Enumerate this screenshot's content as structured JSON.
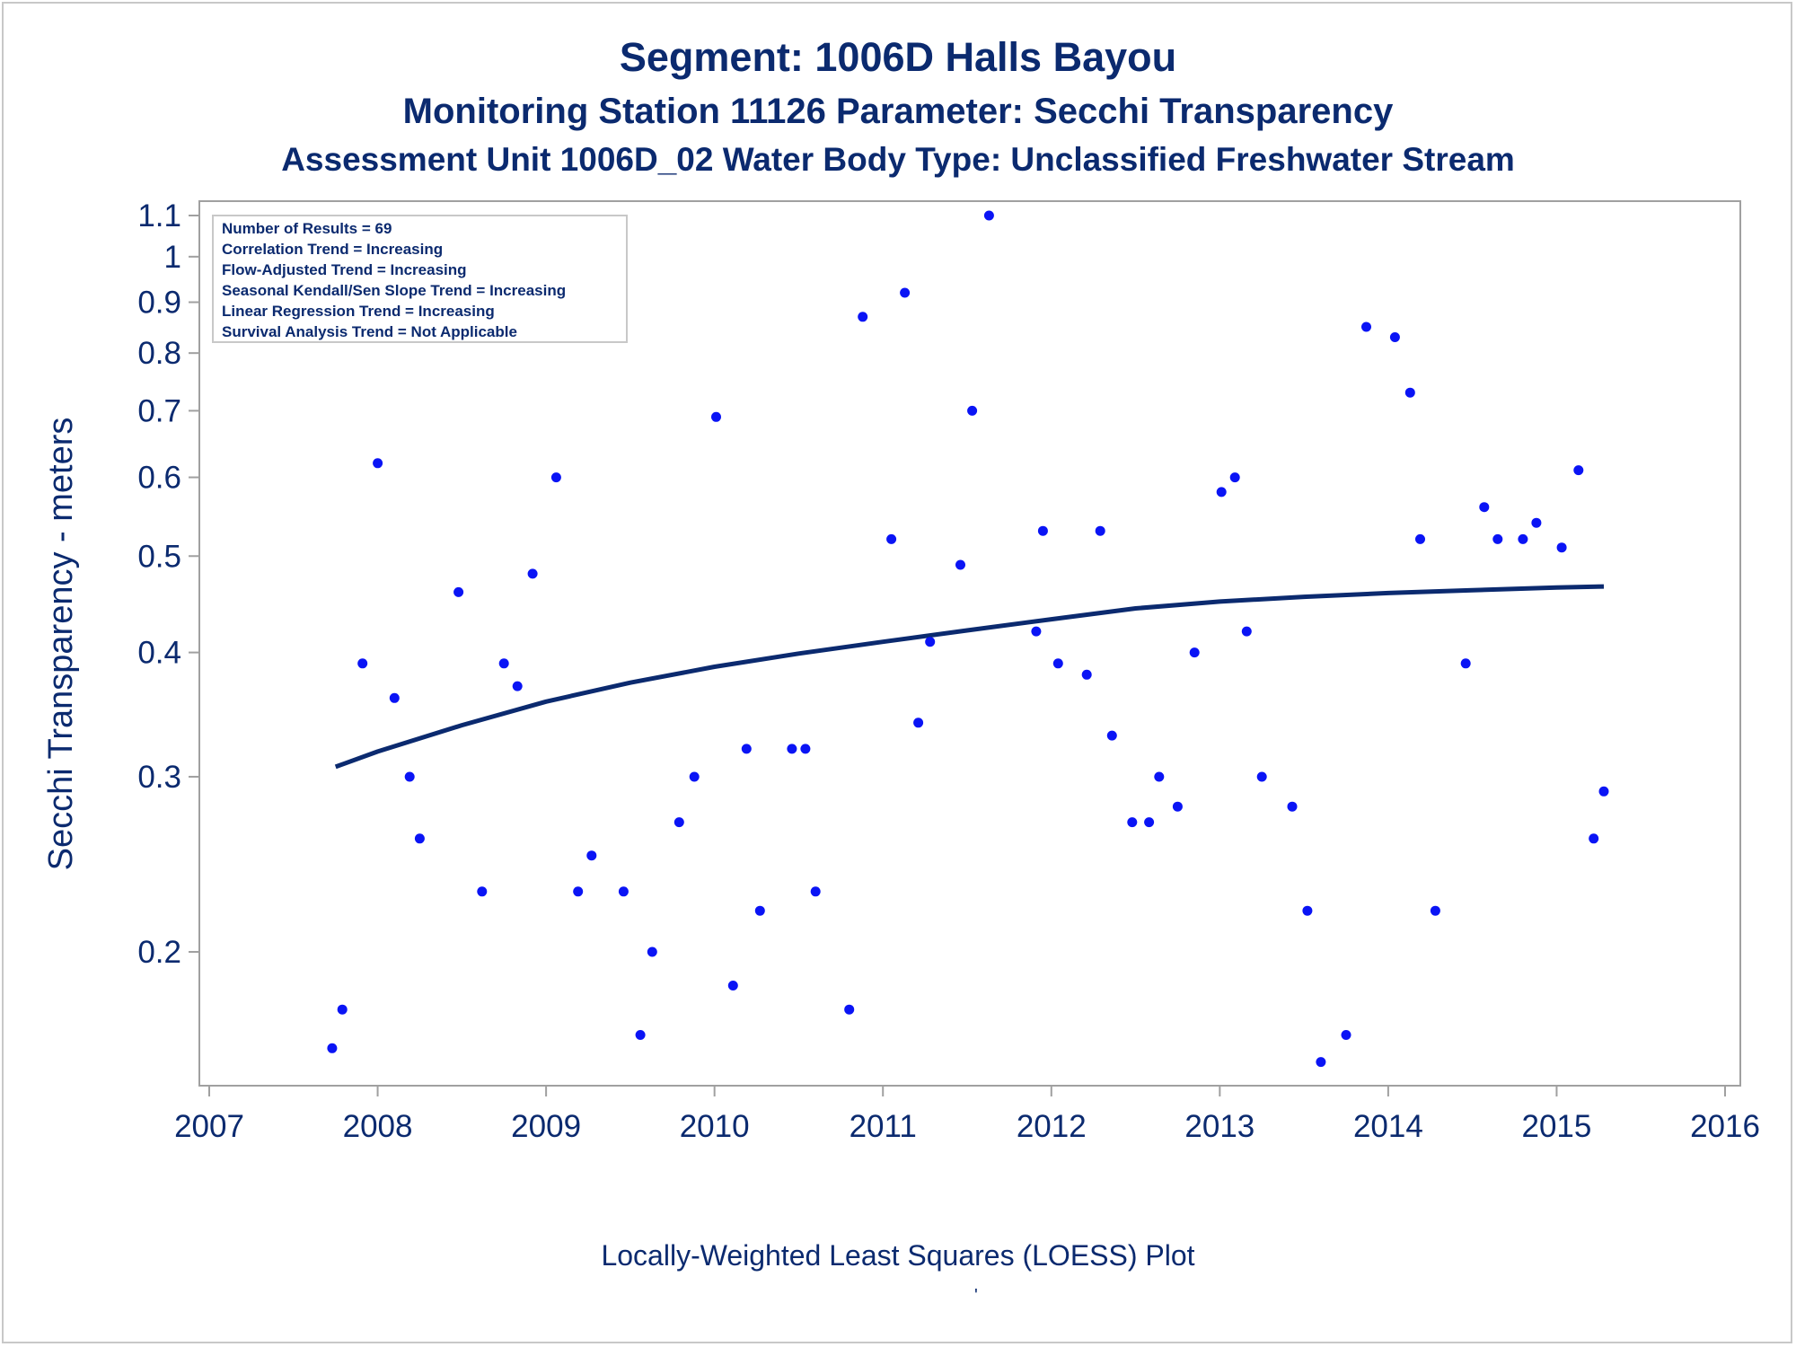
{
  "titles": {
    "line1": "Segment: 1006D  Halls Bayou",
    "line2": "Monitoring Station 11126 Parameter: Secchi Transparency",
    "line3": "Assessment Unit 1006D_02   Water Body Type: Unclassified Freshwater Stream"
  },
  "stats_box": [
    "Number of Results = 69",
    "Correlation Trend = Increasing",
    "Flow-Adjusted Trend = Increasing",
    "Seasonal Kendall/Sen Slope Trend = Increasing",
    "Linear Regression Trend = Increasing",
    "Survival Analysis Trend = Not Applicable"
  ],
  "footnote": "Locally-Weighted Least Squares (LOESS) Plot",
  "footnote_mark": "'",
  "colors": {
    "text": "#0b2a6f",
    "points": "#0a14f5",
    "loess": "#0b2a6f",
    "axis": "#a0a0a0"
  },
  "chart_data": {
    "type": "scatter",
    "ylabel": "Secchi Transparency - meters",
    "xlabel": "",
    "x_scale": "time (years)",
    "y_scale": "log",
    "xlim": [
      2007,
      2016
    ],
    "ylim": [
      0.15,
      1.1
    ],
    "x_ticks": [
      "2007",
      "2008",
      "2009",
      "2010",
      "2011",
      "2012",
      "2013",
      "2014",
      "2015",
      "2016"
    ],
    "y_ticks": [
      {
        "value": 0.2,
        "label": "0.2"
      },
      {
        "value": 0.3,
        "label": "0.3"
      },
      {
        "value": 0.4,
        "label": "0.4"
      },
      {
        "value": 0.5,
        "label": "0.5"
      },
      {
        "value": 0.6,
        "label": "0.6"
      },
      {
        "value": 0.7,
        "label": "0.7"
      },
      {
        "value": 0.8,
        "label": "0.8"
      },
      {
        "value": 0.9,
        "label": "0.9"
      },
      {
        "value": 1.0,
        "label": "1"
      },
      {
        "value": 1.1,
        "label": "1.1"
      }
    ],
    "grid": false,
    "legend": "none",
    "series": [
      {
        "kind": "points",
        "points": [
          [
            2007.73,
            0.16
          ],
          [
            2007.79,
            0.175
          ],
          [
            2007.91,
            0.39
          ],
          [
            2008.0,
            0.62
          ],
          [
            2008.1,
            0.36
          ],
          [
            2008.19,
            0.3
          ],
          [
            2008.25,
            0.26
          ],
          [
            2008.48,
            0.46
          ],
          [
            2008.62,
            0.23
          ],
          [
            2008.75,
            0.39
          ],
          [
            2008.83,
            0.37
          ],
          [
            2008.92,
            0.48
          ],
          [
            2009.06,
            0.6
          ],
          [
            2009.19,
            0.23
          ],
          [
            2009.27,
            0.25
          ],
          [
            2009.46,
            0.23
          ],
          [
            2009.56,
            0.165
          ],
          [
            2009.63,
            0.2
          ],
          [
            2009.79,
            0.27
          ],
          [
            2009.88,
            0.3
          ],
          [
            2010.01,
            0.69
          ],
          [
            2010.11,
            0.185
          ],
          [
            2010.19,
            0.32
          ],
          [
            2010.27,
            0.22
          ],
          [
            2010.46,
            0.32
          ],
          [
            2010.54,
            0.32
          ],
          [
            2010.6,
            0.23
          ],
          [
            2010.8,
            0.175
          ],
          [
            2010.88,
            0.87
          ],
          [
            2011.05,
            0.52
          ],
          [
            2011.13,
            0.92
          ],
          [
            2011.21,
            0.34
          ],
          [
            2011.28,
            0.41
          ],
          [
            2011.46,
            0.49
          ],
          [
            2011.53,
            0.7
          ],
          [
            2011.63,
            1.1
          ],
          [
            2011.91,
            0.42
          ],
          [
            2011.95,
            0.53
          ],
          [
            2012.04,
            0.39
          ],
          [
            2012.21,
            0.38
          ],
          [
            2012.29,
            0.53
          ],
          [
            2012.36,
            0.33
          ],
          [
            2012.48,
            0.27
          ],
          [
            2012.58,
            0.27
          ],
          [
            2012.64,
            0.3
          ],
          [
            2012.75,
            0.28
          ],
          [
            2012.85,
            0.4
          ],
          [
            2013.01,
            0.58
          ],
          [
            2013.09,
            0.6
          ],
          [
            2013.16,
            0.42
          ],
          [
            2013.25,
            0.3
          ],
          [
            2013.43,
            0.28
          ],
          [
            2013.52,
            0.22
          ],
          [
            2013.6,
            0.155
          ],
          [
            2013.75,
            0.165
          ],
          [
            2013.87,
            0.85
          ],
          [
            2014.04,
            0.83
          ],
          [
            2014.13,
            0.73
          ],
          [
            2014.19,
            0.52
          ],
          [
            2014.28,
            0.22
          ],
          [
            2014.46,
            0.39
          ],
          [
            2014.57,
            0.56
          ],
          [
            2014.65,
            0.52
          ],
          [
            2014.8,
            0.52
          ],
          [
            2014.88,
            0.54
          ],
          [
            2015.03,
            0.51
          ],
          [
            2015.13,
            0.61
          ],
          [
            2015.22,
            0.26
          ],
          [
            2015.28,
            0.29
          ]
        ]
      },
      {
        "kind": "loess",
        "points": [
          [
            2007.75,
            0.307
          ],
          [
            2008.0,
            0.318
          ],
          [
            2008.5,
            0.338
          ],
          [
            2009.0,
            0.357
          ],
          [
            2009.5,
            0.373
          ],
          [
            2010.0,
            0.387
          ],
          [
            2010.5,
            0.399
          ],
          [
            2011.0,
            0.41
          ],
          [
            2011.5,
            0.421
          ],
          [
            2012.0,
            0.432
          ],
          [
            2012.5,
            0.443
          ],
          [
            2013.0,
            0.45
          ],
          [
            2013.5,
            0.455
          ],
          [
            2014.0,
            0.459
          ],
          [
            2014.5,
            0.462
          ],
          [
            2015.0,
            0.465
          ],
          [
            2015.28,
            0.466
          ]
        ]
      }
    ]
  }
}
